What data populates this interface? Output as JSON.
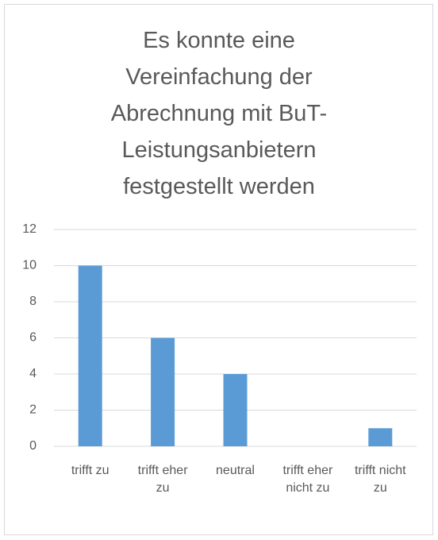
{
  "chart_data": {
    "type": "bar",
    "title": "Es konnte eine Vereinfachung der Abrechnung mit BuT-Leistungsanbietern festgestellt werden",
    "categories": [
      "trifft zu",
      "trifft eher zu",
      "neutral",
      "trifft eher nicht zu",
      "trifft nicht zu"
    ],
    "values": [
      10,
      6,
      4,
      0,
      1
    ],
    "color": "#5b9bd5",
    "ylim": [
      0,
      12
    ],
    "yticks": [
      0,
      2,
      4,
      6,
      8,
      10,
      12
    ],
    "grid": true
  }
}
